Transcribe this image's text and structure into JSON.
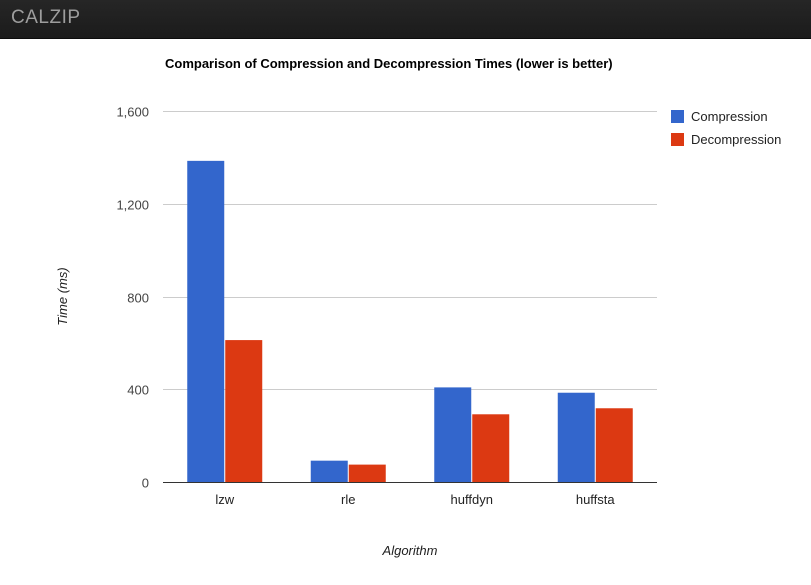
{
  "app": {
    "brand": "CALZIP"
  },
  "chart_data": {
    "type": "bar",
    "title": "Comparison of Compression and Decompression Times (lower is better)",
    "xlabel": "Algorithm",
    "ylabel": "Time (ms)",
    "categories": [
      "lzw",
      "rle",
      "huffdyn",
      "huffsta"
    ],
    "series": [
      {
        "name": "Compression",
        "color": "#3366cc",
        "values": [
          1385,
          92,
          408,
          385
        ]
      },
      {
        "name": "Decompression",
        "color": "#dc3912",
        "values": [
          612,
          75,
          292,
          318
        ]
      }
    ],
    "ylim": [
      0,
      1600
    ],
    "yticks": [
      0,
      400,
      800,
      1200,
      1600
    ],
    "ytick_labels": [
      "0",
      "400",
      "800",
      "1,200",
      "1,600"
    ],
    "grid": true,
    "legend_position": "right"
  }
}
